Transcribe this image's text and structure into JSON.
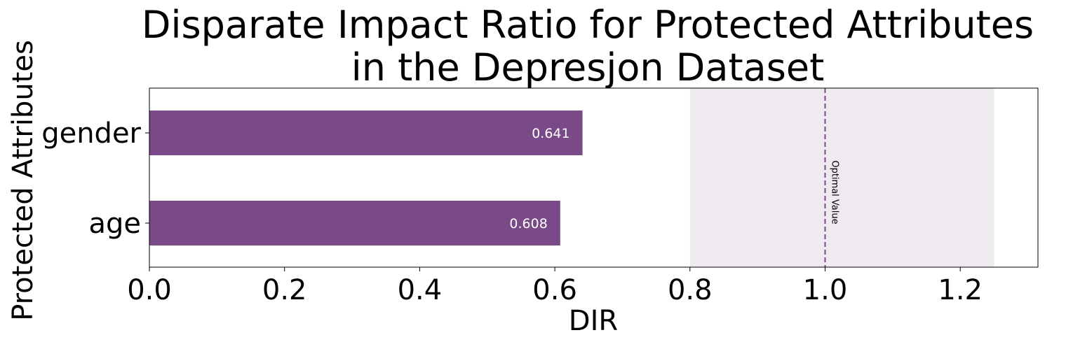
{
  "chart_data": {
    "type": "bar",
    "orientation": "horizontal",
    "title_line1": "Disparate Impact Ratio for Protected Attributes",
    "title_line2": "in the Depresjon Dataset",
    "xlabel": "DIR",
    "ylabel": "Protected Attributes",
    "categories": [
      "gender",
      "age"
    ],
    "values": [
      0.641,
      0.608
    ],
    "value_labels": [
      "0.641",
      "0.608"
    ],
    "xlim": [
      0,
      1.315
    ],
    "xticks": [
      0.0,
      0.2,
      0.4,
      0.6,
      0.8,
      1.0,
      1.2
    ],
    "xtick_labels": [
      "0.0",
      "0.2",
      "0.4",
      "0.6",
      "0.8",
      "1.0",
      "1.2"
    ],
    "fair_region": [
      0.8,
      1.25
    ],
    "optimal_value": 1.0,
    "optimal_label": "Optimal Value",
    "grid": false,
    "colors": {
      "bar": "#7a4988",
      "fair_region": "#efe9f0",
      "optimal_line": "#7a4988",
      "value_label": "#ffffff"
    }
  }
}
